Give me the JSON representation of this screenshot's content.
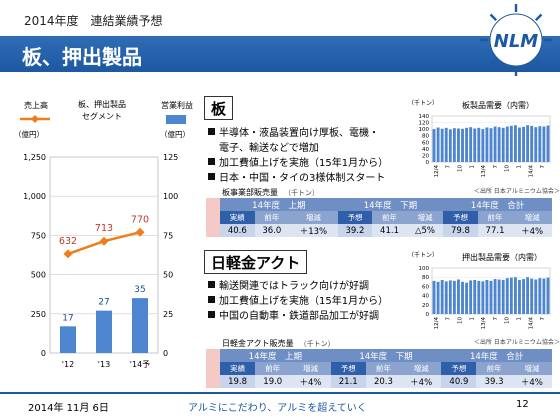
{
  "header": {
    "subtitle": "2014年度　連結業績予想",
    "title": "板、押出製品"
  },
  "left_chart": {
    "legend_sales": "売上高",
    "legend_segment_line1": "板、押出製品",
    "legend_segment_line2": "セグメント",
    "legend_profit": "営業利益",
    "left_unit": "（億円）",
    "right_unit": "（億円）",
    "colors": {
      "sales": "#f07d1a",
      "profit": "#4d86cf"
    }
  },
  "chart_data": [
    {
      "type": "bar",
      "categories": [
        "'12",
        "'13",
        "'14予"
      ],
      "series": [
        {
          "name": "売上高",
          "type": "line",
          "axis": "left",
          "values": [
            632,
            713,
            770
          ]
        },
        {
          "name": "営業利益",
          "type": "bar",
          "axis": "right",
          "values": [
            17,
            27,
            35
          ]
        }
      ],
      "left_ticks": [
        "0",
        "250",
        "500",
        "750",
        "1,000",
        "1,250"
      ],
      "left_ylim": [
        0,
        1250
      ],
      "right_ticks": [
        "0",
        "25",
        "50",
        "75",
        "100",
        "125"
      ],
      "right_ylim": [
        0,
        125
      ],
      "grid": true
    },
    {
      "type": "bar",
      "title": "板製品需要（内需）",
      "unit": "（千トン）",
      "ylim": [
        0,
        140
      ],
      "y_ticks": [
        "0",
        "20",
        "40",
        "60",
        "80",
        "100",
        "120",
        "140"
      ],
      "x_labels": [
        "12/4",
        "7",
        "10",
        "1",
        "13/4",
        "7",
        "10",
        "1",
        "14/4",
        "7"
      ],
      "values": [
        100,
        105,
        101,
        104,
        99,
        103,
        102,
        101,
        104,
        106,
        102,
        104,
        100,
        105,
        103,
        108,
        106,
        104,
        108,
        110,
        112,
        105,
        107,
        112,
        110,
        106,
        109,
        108,
        111
      ],
      "source": "＜出所 日本アルミニウム協会＞"
    },
    {
      "type": "bar",
      "title": "押出製品需要（内需）",
      "unit": "（千トン）",
      "ylim": [
        0,
        100
      ],
      "y_ticks": [
        "0",
        "20",
        "40",
        "60",
        "80",
        "100"
      ],
      "x_labels": [
        "12/4",
        "7",
        "10",
        "1",
        "13/4",
        "7",
        "10",
        "1",
        "14/4",
        "7"
      ],
      "values": [
        72,
        70,
        74,
        71,
        73,
        72,
        75,
        70,
        68,
        73,
        74,
        72,
        71,
        74,
        72,
        76,
        75,
        74,
        78,
        79,
        80,
        74,
        76,
        80,
        77,
        75,
        78,
        77,
        79
      ],
      "source": "＜出所 日本アルミニウム協会＞"
    }
  ],
  "sheet": {
    "heading": "板",
    "bullets": [
      "半導体・液晶装置向け厚板、電機・",
      "電子、輸送などで増加",
      "加工費値上げを実施（15年1月から）",
      "日本・中国・タイの3様体制スタート"
    ],
    "table_caption": "板事業部販売量",
    "table_unit": "（千トン）",
    "groups": [
      "14年度　上期",
      "14年度　下期",
      "14年度　合計"
    ],
    "subheaders": [
      [
        "実績",
        "前年",
        "増減"
      ],
      [
        "予想",
        "前年",
        "増減"
      ],
      [
        "予想",
        "前年",
        "増減"
      ]
    ],
    "values": [
      [
        "40.6",
        "36.0",
        "＋13%"
      ],
      [
        "39.2",
        "41.1",
        "△5%"
      ],
      [
        "79.8",
        "77.1",
        "＋4%"
      ]
    ]
  },
  "extrusion": {
    "heading": "日軽金アクト",
    "bullets": [
      "輸送関連ではトラック向けが好調",
      "加工費値上げを実施（15年1月から）",
      "中国の自動車・鉄道部品加工が好調"
    ],
    "table_caption": "日軽金アクト販売量",
    "table_unit": "（千トン）",
    "groups": [
      "14年度　上期",
      "14年度　下期",
      "14年度　合計"
    ],
    "subheaders": [
      [
        "実績",
        "前年",
        "増減"
      ],
      [
        "予想",
        "前年",
        "増減"
      ],
      [
        "予想",
        "前年",
        "増減"
      ]
    ],
    "values": [
      [
        "19.8",
        "19.0",
        "＋4%"
      ],
      [
        "21.1",
        "20.3",
        "＋4%"
      ],
      [
        "40.9",
        "39.3",
        "＋4%"
      ]
    ]
  },
  "footer": {
    "date": "2014年 11月 6日",
    "slogan": "アルミにこだわり、アルミを超えていく",
    "page": "12"
  },
  "logo": {
    "text": "NLM",
    "color": "#1d58a3"
  }
}
